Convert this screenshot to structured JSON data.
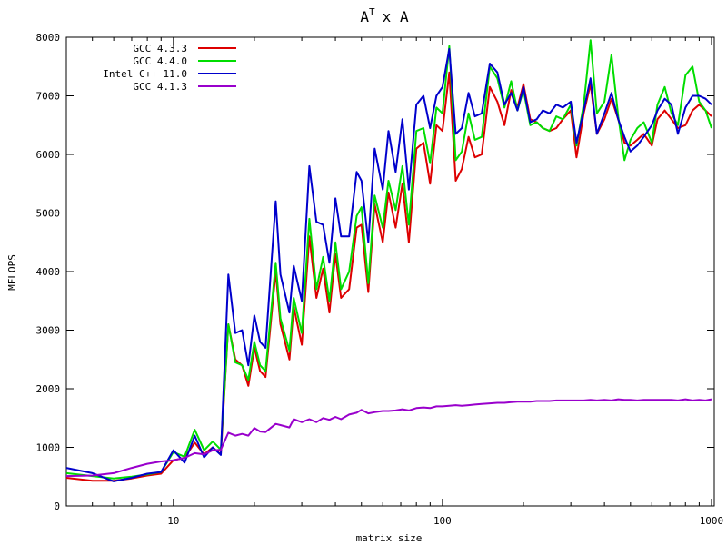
{
  "chart_data": {
    "type": "line",
    "title": "A",
    "title_superscript": "T",
    "title_suffix": "x A",
    "xlabel": "matrix size",
    "ylabel": "MFLOPS",
    "xscale": "log",
    "xlim": [
      4,
      1024
    ],
    "ylim": [
      0,
      8000
    ],
    "xticks": [
      10,
      100,
      1000
    ],
    "xtick_labels": [
      "10",
      "100",
      "1000"
    ],
    "yticks": [
      0,
      1000,
      2000,
      3000,
      4000,
      5000,
      6000,
      7000,
      8000
    ],
    "ytick_labels": [
      "0",
      "1000",
      "2000",
      "3000",
      "4000",
      "5000",
      "6000",
      "7000",
      "8000"
    ],
    "grid": false,
    "legend_position": "top-left",
    "x": [
      4,
      5,
      6,
      7,
      8,
      9,
      10,
      11,
      12,
      13,
      14,
      15,
      16,
      17,
      18,
      19,
      20,
      21,
      22,
      24,
      25,
      27,
      28,
      30,
      32,
      34,
      36,
      38,
      40,
      42,
      45,
      48,
      50,
      53,
      56,
      60,
      63,
      67,
      71,
      75,
      80,
      85,
      90,
      95,
      100,
      106,
      112,
      118,
      125,
      132,
      140,
      150,
      160,
      170,
      180,
      190,
      200,
      212,
      224,
      236,
      250,
      265,
      280,
      300,
      315,
      335,
      355,
      375,
      400,
      425,
      450,
      475,
      500,
      530,
      560,
      600,
      630,
      670,
      710,
      750,
      800,
      850,
      900,
      950,
      1000
    ],
    "series": [
      {
        "name": "GCC 4.3.3",
        "color": "#dd0000",
        "values": [
          480,
          430,
          430,
          470,
          520,
          550,
          780,
          820,
          1080,
          880,
          1000,
          880,
          3100,
          2500,
          2400,
          2050,
          2700,
          2300,
          2200,
          4000,
          3100,
          2500,
          3400,
          2750,
          4600,
          3550,
          4050,
          3300,
          4300,
          3550,
          3700,
          4750,
          4800,
          3650,
          5150,
          4500,
          5350,
          4750,
          5500,
          4500,
          6100,
          6200,
          5500,
          6500,
          6400,
          7400,
          5550,
          5750,
          6300,
          5950,
          6000,
          7150,
          6900,
          6500,
          7100,
          6800,
          7200,
          6600,
          6550,
          6450,
          6400,
          6450,
          6600,
          6750,
          5950,
          6700,
          7200,
          6350,
          6600,
          6950,
          6600,
          6200,
          6150,
          6250,
          6350,
          6150,
          6600,
          6750,
          6600,
          6450,
          6500,
          6750,
          6850,
          6750,
          6650
        ]
      },
      {
        "name": "GCC 4.4.0",
        "color": "#00dd00",
        "values": [
          560,
          510,
          470,
          500,
          540,
          580,
          920,
          840,
          1300,
          950,
          1100,
          960,
          3100,
          2450,
          2400,
          2150,
          2800,
          2400,
          2300,
          4150,
          3200,
          2650,
          3550,
          2950,
          4900,
          3700,
          4250,
          3500,
          4500,
          3700,
          4000,
          4950,
          5100,
          3800,
          5300,
          4750,
          5550,
          5050,
          5800,
          4800,
          6400,
          6450,
          5850,
          6800,
          6700,
          7850,
          5900,
          6050,
          6700,
          6250,
          6300,
          7500,
          7300,
          6800,
          7250,
          6750,
          7100,
          6500,
          6550,
          6450,
          6400,
          6650,
          6600,
          6850,
          6150,
          6850,
          7950,
          6700,
          6900,
          7700,
          6650,
          5900,
          6250,
          6450,
          6550,
          6200,
          6850,
          7150,
          6700,
          6500,
          7350,
          7500,
          6900,
          6750,
          6450
        ]
      },
      {
        "name": "Intel C++ 11.0",
        "color": "#0000cc",
        "values": [
          650,
          560,
          420,
          480,
          550,
          580,
          950,
          740,
          1200,
          830,
          1000,
          870,
          3950,
          2950,
          3000,
          2400,
          3250,
          2800,
          2700,
          5200,
          3950,
          3300,
          4100,
          3500,
          5800,
          4850,
          4800,
          4150,
          5250,
          4600,
          4600,
          5700,
          5550,
          4500,
          6100,
          5400,
          6400,
          5700,
          6600,
          5400,
          6850,
          7000,
          6450,
          7000,
          7150,
          7800,
          6350,
          6450,
          7050,
          6650,
          6700,
          7550,
          7400,
          6850,
          7050,
          6750,
          7150,
          6550,
          6600,
          6750,
          6700,
          6850,
          6800,
          6900,
          6200,
          6750,
          7300,
          6350,
          6700,
          7050,
          6600,
          6300,
          6050,
          6150,
          6300,
          6500,
          6750,
          6950,
          6850,
          6350,
          6800,
          7000,
          7000,
          6950,
          6850
        ]
      },
      {
        "name": "GCC 4.1.3",
        "color": "#9900cc",
        "values": [
          510,
          520,
          560,
          650,
          720,
          760,
          780,
          820,
          900,
          880,
          950,
          960,
          1250,
          1200,
          1230,
          1200,
          1330,
          1270,
          1260,
          1400,
          1380,
          1340,
          1480,
          1430,
          1480,
          1430,
          1500,
          1470,
          1520,
          1480,
          1560,
          1590,
          1640,
          1580,
          1600,
          1620,
          1620,
          1630,
          1650,
          1630,
          1670,
          1680,
          1670,
          1700,
          1700,
          1710,
          1720,
          1710,
          1720,
          1730,
          1740,
          1750,
          1760,
          1760,
          1770,
          1780,
          1780,
          1780,
          1790,
          1790,
          1790,
          1800,
          1800,
          1800,
          1800,
          1800,
          1810,
          1800,
          1810,
          1800,
          1820,
          1810,
          1810,
          1800,
          1810,
          1810,
          1810,
          1810,
          1810,
          1800,
          1820,
          1800,
          1810,
          1800,
          1820
        ]
      }
    ]
  }
}
